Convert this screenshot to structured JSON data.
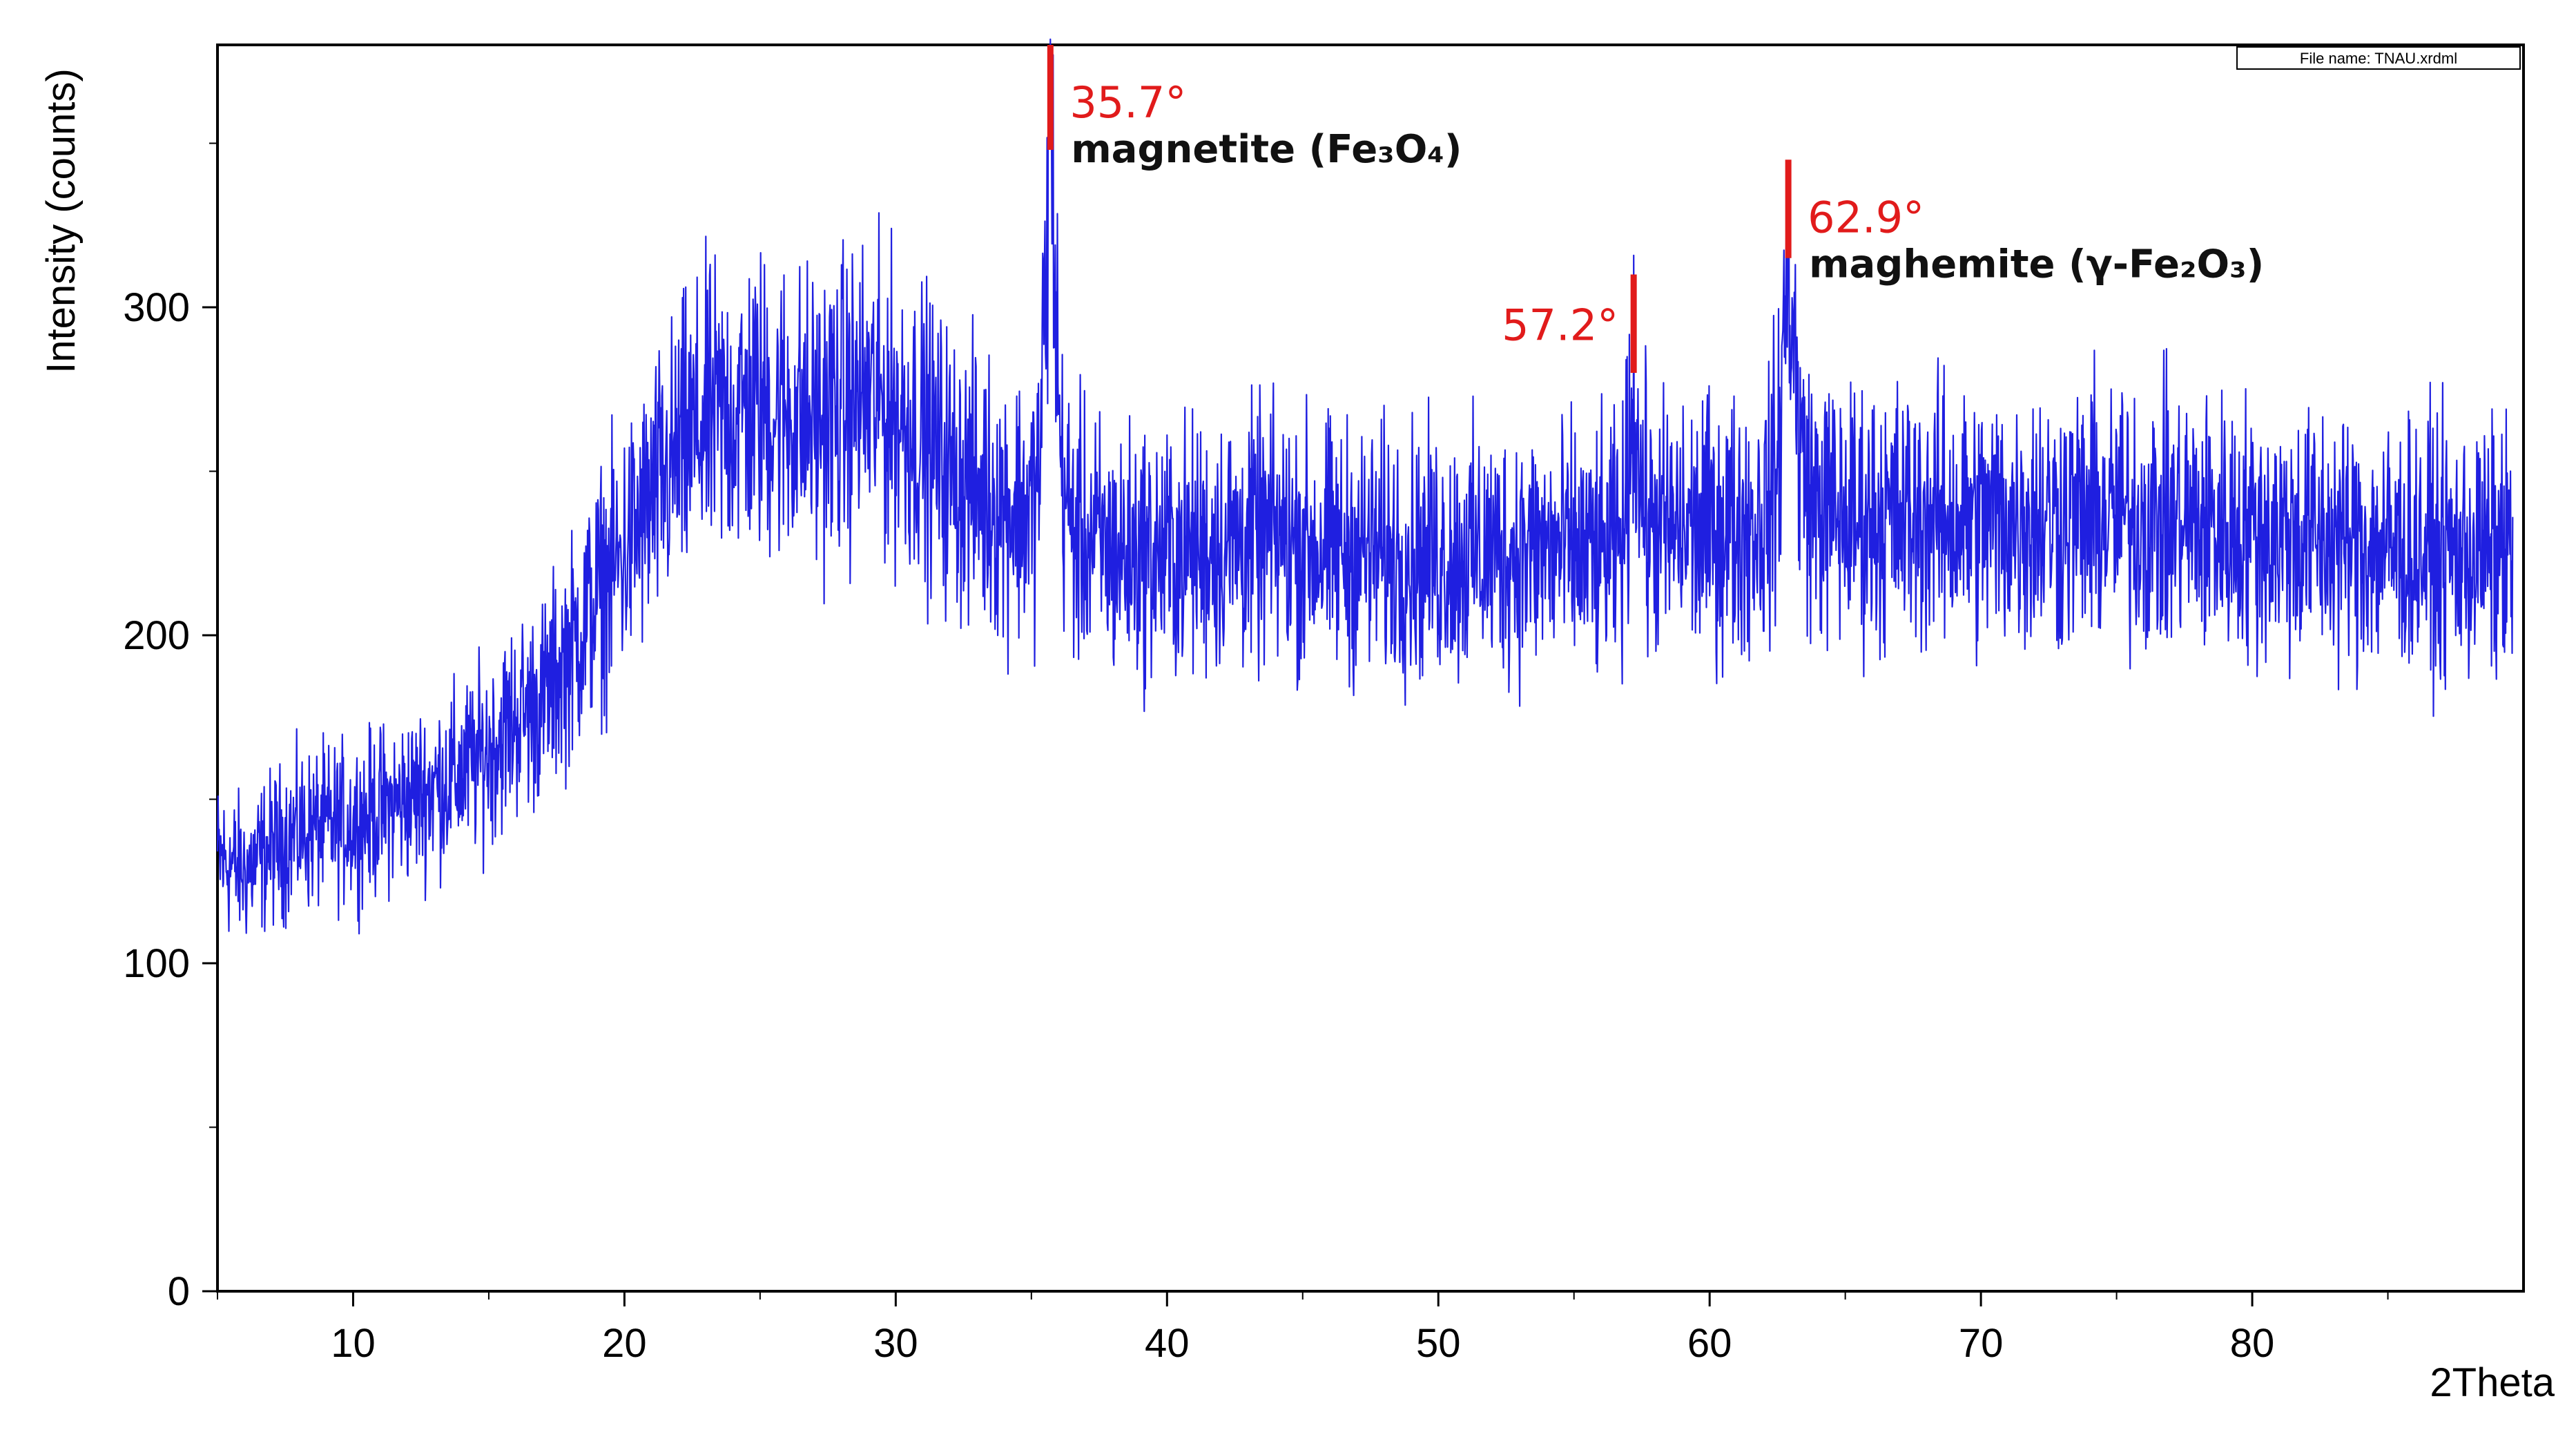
{
  "chart_data": {
    "type": "line",
    "xlabel": "2Theta",
    "ylabel": "Intensity (counts)",
    "file_label": "File name: TNAU.xrdml",
    "xlim": [
      5,
      90
    ],
    "ylim": [
      0,
      380
    ],
    "x_ticks": [
      10,
      20,
      30,
      40,
      50,
      60,
      70,
      80
    ],
    "y_ticks": [
      0,
      100,
      200,
      300
    ],
    "grid": false,
    "legend": "none",
    "colors": {
      "series": "#1f1fe0",
      "markers": "#e11b1b",
      "text": "#111111"
    },
    "series": [
      {
        "values_note_envelope": [
          [
            5,
            132
          ],
          [
            6,
            128
          ],
          [
            7,
            135
          ],
          [
            8,
            140
          ],
          [
            10,
            143
          ],
          [
            12,
            150
          ],
          [
            14,
            158
          ],
          [
            15,
            165
          ],
          [
            16,
            175
          ],
          [
            17,
            180
          ],
          [
            18,
            195
          ],
          [
            19,
            212
          ],
          [
            20,
            225
          ],
          [
            21,
            240
          ],
          [
            22,
            255
          ],
          [
            23,
            265
          ],
          [
            24,
            268
          ],
          [
            25,
            270
          ],
          [
            26,
            268
          ],
          [
            27,
            265
          ],
          [
            28,
            270
          ],
          [
            29,
            272
          ],
          [
            30,
            268
          ],
          [
            31,
            262
          ],
          [
            32,
            250
          ],
          [
            33,
            245
          ],
          [
            34,
            240
          ],
          [
            35,
            238
          ],
          [
            35.3,
            250
          ],
          [
            35.5,
            300
          ],
          [
            35.7,
            360
          ],
          [
            35.9,
            300
          ],
          [
            36.1,
            250
          ],
          [
            36.5,
            232
          ],
          [
            38,
            225
          ],
          [
            40,
            225
          ],
          [
            42,
            228
          ],
          [
            44,
            230
          ],
          [
            46,
            226
          ],
          [
            48,
            225
          ],
          [
            50,
            224
          ],
          [
            52,
            225
          ],
          [
            54,
            226
          ],
          [
            56,
            224
          ],
          [
            56.8,
            228
          ],
          [
            57.0,
            250
          ],
          [
            57.2,
            278
          ],
          [
            57.4,
            250
          ],
          [
            57.7,
            235
          ],
          [
            58,
            232
          ],
          [
            60,
            232
          ],
          [
            62,
            235
          ],
          [
            62.5,
            250
          ],
          [
            62.7,
            285
          ],
          [
            62.9,
            315
          ],
          [
            63.1,
            290
          ],
          [
            63.3,
            258
          ],
          [
            63.8,
            240
          ],
          [
            65,
            236
          ],
          [
            68,
            236
          ],
          [
            70,
            235
          ],
          [
            72,
            236
          ],
          [
            75,
            236
          ],
          [
            78,
            234
          ],
          [
            80,
            232
          ],
          [
            82,
            230
          ],
          [
            84,
            228
          ],
          [
            86,
            226
          ],
          [
            88,
            225
          ],
          [
            89.5,
            226
          ]
        ]
      }
    ],
    "annotations": [
      {
        "x": 35.7,
        "angle": "35.7°",
        "phase": "magnetite (Fe₃O₄)",
        "marker_top": 380,
        "marker_bottom": 348
      },
      {
        "x": 57.2,
        "angle": "57.2°",
        "phase": "",
        "marker_top": 310,
        "marker_bottom": 280
      },
      {
        "x": 62.9,
        "angle": "62.9°",
        "phase": "maghemite (γ-Fe₂O₃)",
        "marker_top": 345,
        "marker_bottom": 315
      }
    ]
  }
}
